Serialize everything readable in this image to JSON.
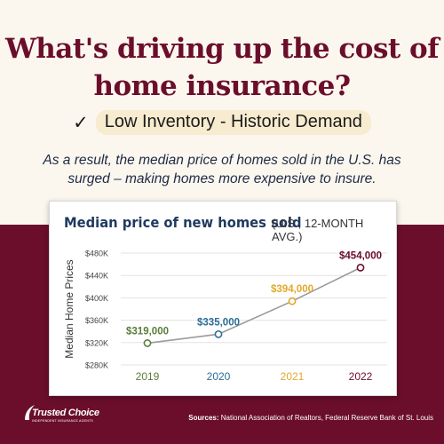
{
  "headline": "What's driving up the cost of home insurance?",
  "subhead": {
    "check_icon": "checkmark-icon",
    "text": "Low Inventory - Historic Demand"
  },
  "intro": "As a result, the median price of homes sold in the U.S. has surged – making homes more expensive to insure.",
  "colors": {
    "maroon": "#6b0e2b",
    "navy": "#1f3a5f",
    "green": "#5a7d3a",
    "blue": "#2c6e96",
    "gold": "#e2a92b",
    "gray_line": "#9a9a9a"
  },
  "chart_data": {
    "type": "line",
    "title": "Median price of new homes sold",
    "subtitle": "(U.S., 12-MONTH AVG.)",
    "ylabel": "Median Home Prices",
    "xlabel": "",
    "ylim": [
      280000,
      480000
    ],
    "yticks": [
      280000,
      320000,
      360000,
      400000,
      440000,
      480000
    ],
    "ytick_labels": [
      "$280K",
      "$320K",
      "$360K",
      "$400K",
      "$440K",
      "$480K"
    ],
    "grid": true,
    "points": [
      {
        "x": "2019",
        "y": 319000,
        "label": "$319,000",
        "color": "#5a7d3a"
      },
      {
        "x": "2020",
        "y": 335000,
        "label": "$335,000",
        "color": "#2c6e96"
      },
      {
        "x": "2021",
        "y": 394000,
        "label": "$394,000",
        "color": "#e2a92b"
      },
      {
        "x": "2022",
        "y": 454000,
        "label": "$454,000",
        "color": "#6b0e2b"
      }
    ]
  },
  "footer": {
    "logo_name": "Trusted Choice",
    "logo_tagline": "INDEPENDENT INSURANCE AGENTS",
    "sources_label": "Sources:",
    "sources_text": "National Association of Realtors, Federal Reserve Bank of St. Louis"
  }
}
